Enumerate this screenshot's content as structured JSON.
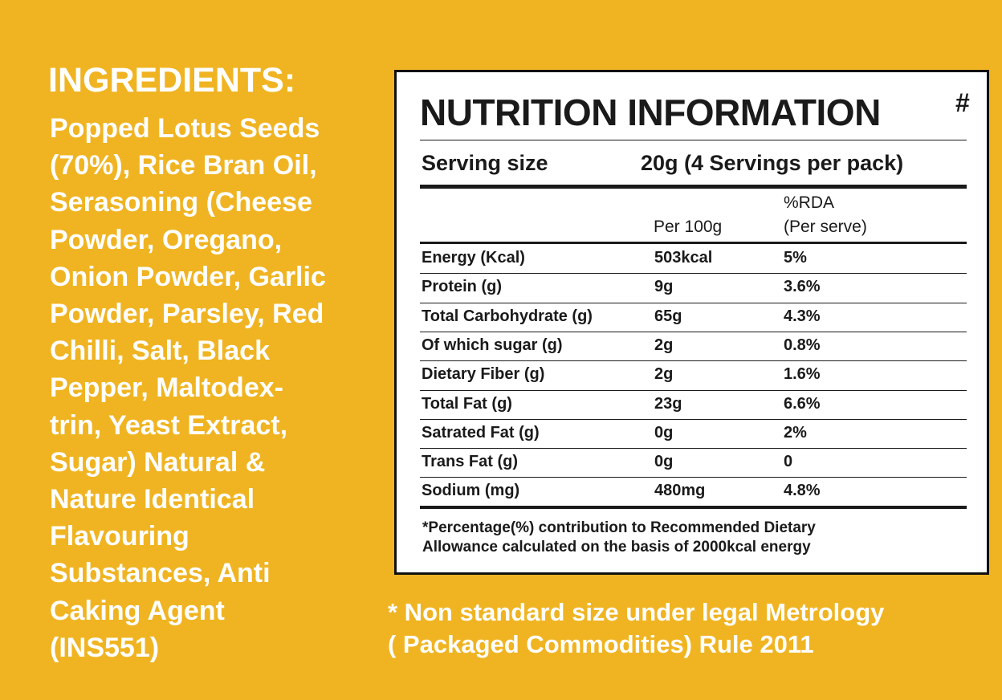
{
  "ingredients": {
    "title": "INGREDIENTS:",
    "lines": [
      "Popped Lotus Seeds",
      "(70%), Rice Bran Oil,",
      "Serasoning (Cheese",
      "Powder, Oregano,",
      "Onion Powder, Garlic",
      "Powder, Parsley, Red",
      "Chilli, Salt, Black",
      "Pepper, Maltodex-",
      "trin, Yeast Extract,",
      "Sugar) Natural &",
      "Nature Identical",
      "Flavouring",
      "Substances, Anti",
      "Caking Agent",
      "(INS551)"
    ]
  },
  "nutrition": {
    "title": "NUTRITION INFORMATION",
    "title_mark": "#",
    "serving_label": "Serving size",
    "serving_value": "20g (4 Servings per pack)",
    "header": {
      "per_100g": "Per 100g",
      "rda": [
        "%RDA",
        "(Per serve)"
      ]
    },
    "rows": [
      [
        "Energy (Kcal)",
        "503kcal",
        "5%"
      ],
      [
        "Protein (g)",
        "9g",
        "3.6%"
      ],
      [
        "Total Carbohydrate (g)",
        "65g",
        "4.3%"
      ],
      [
        "Of which sugar (g)",
        "2g",
        "0.8%"
      ],
      [
        "Dietary Fiber (g)",
        "2g",
        "1.6%"
      ],
      [
        "Total Fat (g)",
        "23g",
        "6.6%"
      ],
      [
        "Satrated Fat (g)",
        "0g",
        "2%"
      ],
      [
        "Trans Fat (g)",
        "0g",
        "0"
      ],
      [
        "Sodium (mg)",
        "480mg",
        "4.8%"
      ]
    ],
    "footnote": [
      "*Percentage(%) contribution to Recommended Dietary",
      "Allowance calculated on the basis of 2000kcal energy"
    ]
  },
  "disclaimer": [
    "* Non standard size under legal Metrology",
    "( Packaged Commodities) Rule 2011"
  ]
}
